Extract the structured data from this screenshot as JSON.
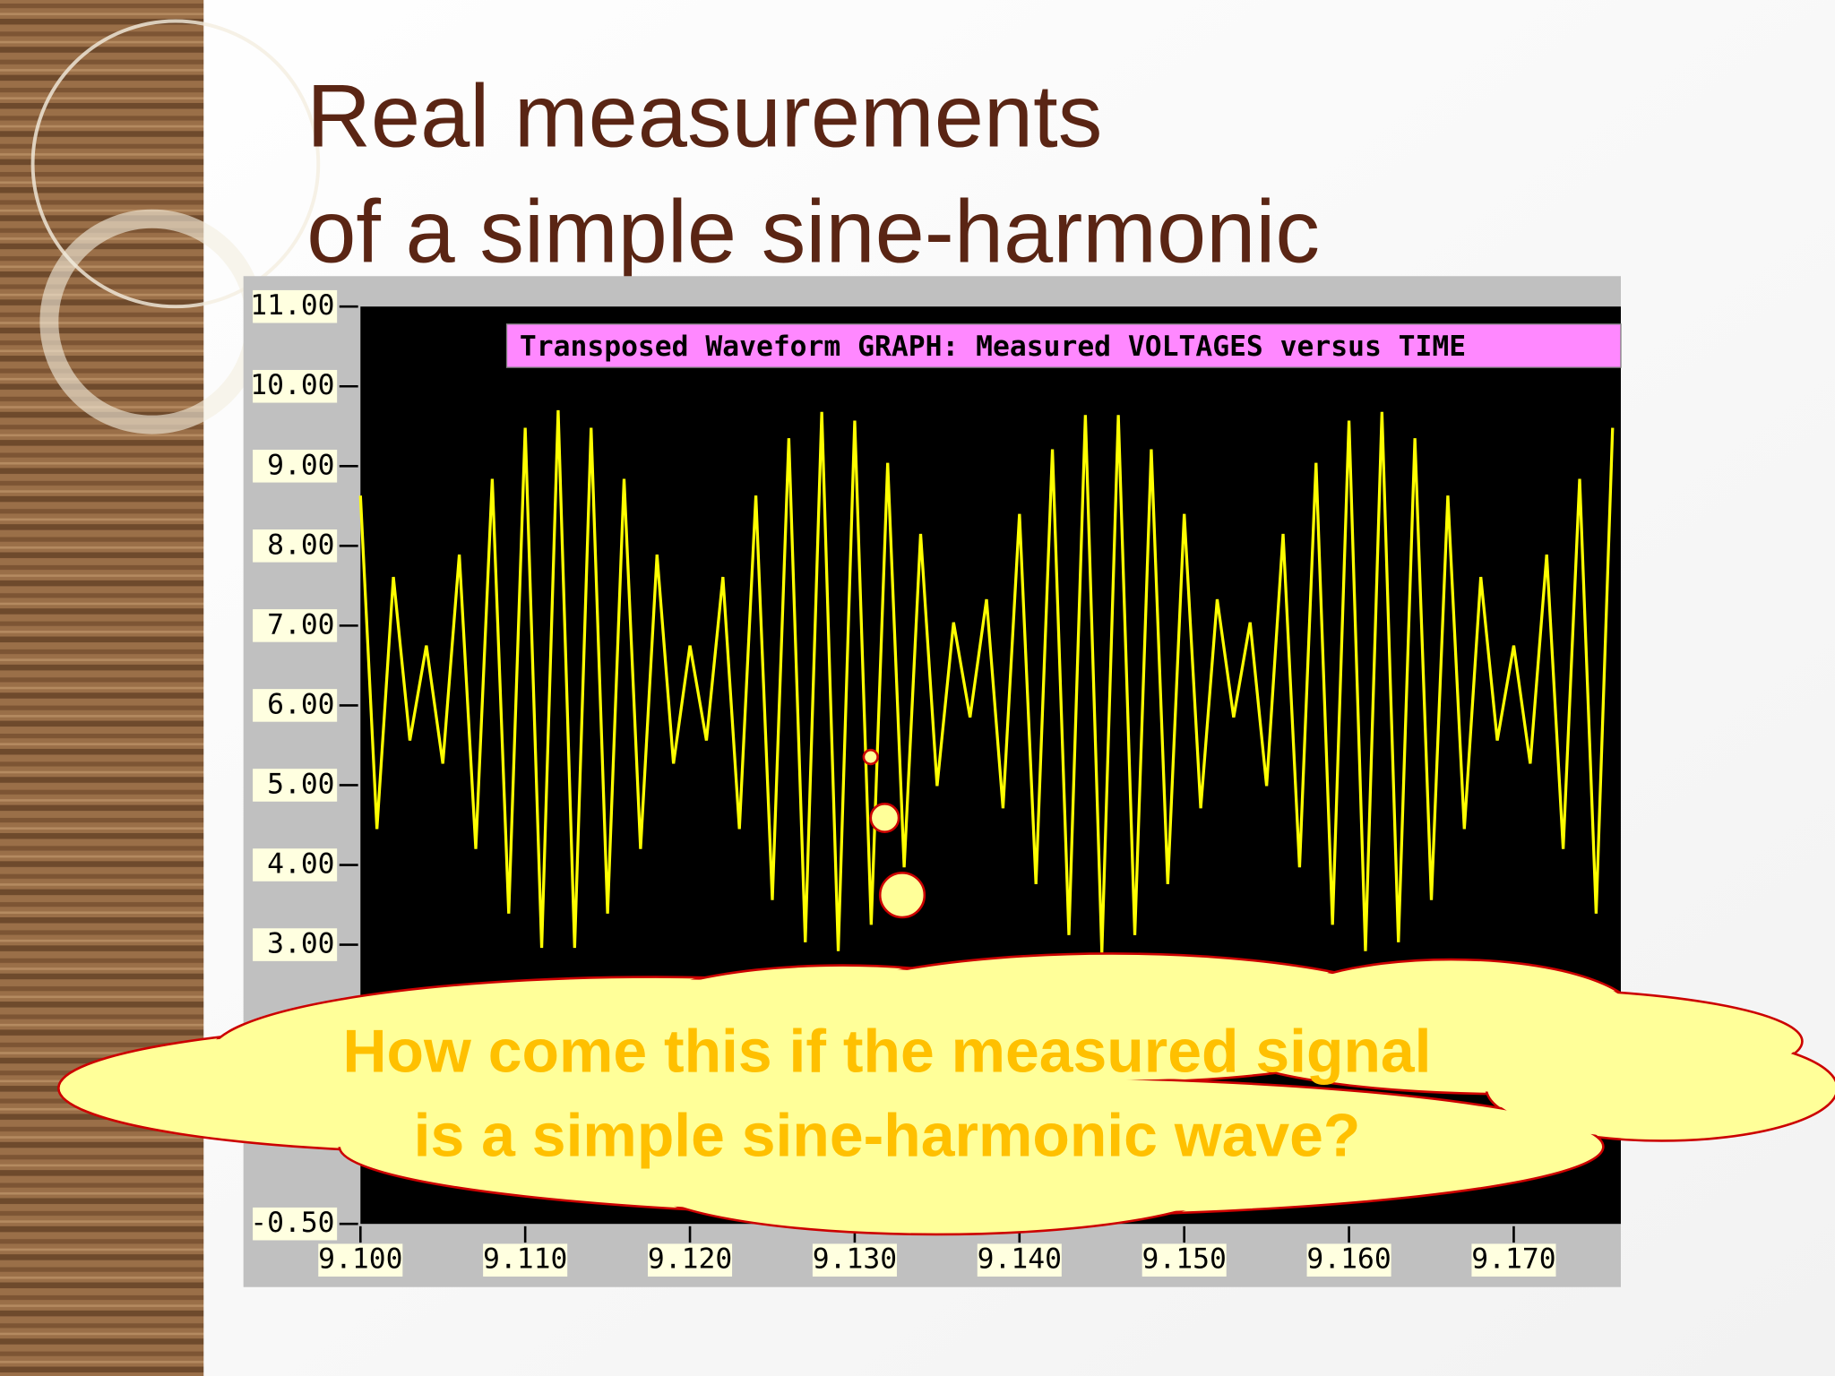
{
  "slide_title": [
    "Real measurements",
    "of a simple sine-harmonic"
  ],
  "callout": [
    "How come this if the measured signal",
    "is a simple sine-harmonic wave?"
  ],
  "chart_data": {
    "type": "line",
    "title": "Transposed Waveform GRAPH: Measured VOLTAGES versus TIME",
    "color": "#ffff00",
    "x": [
      9.1,
      9.101,
      9.102,
      9.103,
      9.104,
      9.105,
      9.106,
      9.107,
      9.108,
      9.109,
      9.11,
      9.111,
      9.112,
      9.113,
      9.114,
      9.115,
      9.116,
      9.117,
      9.118,
      9.119,
      9.12,
      9.121,
      9.122,
      9.123,
      9.124,
      9.125,
      9.126,
      9.127,
      9.128,
      9.129,
      9.13,
      9.131,
      9.132,
      9.133,
      9.134,
      9.135,
      9.136,
      9.137,
      9.138,
      9.139,
      9.14,
      9.141,
      9.142,
      9.143,
      9.144,
      9.145,
      9.146,
      9.147,
      9.148,
      9.149,
      9.15,
      9.151,
      9.152,
      9.153,
      9.154,
      9.155,
      9.156,
      9.157,
      9.158,
      9.159,
      9.16,
      9.161,
      9.162,
      9.163,
      9.164,
      9.165,
      9.166,
      9.167,
      9.168,
      9.169,
      9.17,
      9.171,
      9.172,
      9.173,
      9.174,
      9.175,
      9.176
    ],
    "values": [
      8.63,
      4.45,
      7.61,
      5.56,
      6.75,
      5.27,
      7.89,
      4.2,
      8.84,
      3.39,
      9.48,
      2.96,
      9.7,
      2.96,
      9.48,
      3.39,
      8.84,
      4.2,
      7.89,
      5.27,
      6.75,
      5.56,
      7.61,
      4.45,
      8.63,
      3.56,
      9.35,
      3.03,
      9.68,
      2.92,
      9.57,
      3.25,
      9.04,
      3.97,
      8.15,
      4.99,
      7.04,
      5.85,
      7.33,
      4.71,
      8.4,
      3.76,
      9.21,
      3.12,
      9.64,
      2.9,
      9.64,
      3.12,
      9.21,
      3.76,
      8.4,
      4.71,
      7.33,
      5.85,
      7.04,
      4.99,
      8.15,
      3.97,
      9.04,
      3.25,
      9.57,
      2.92,
      9.68,
      3.03,
      9.35,
      3.56,
      8.63,
      4.45,
      7.61,
      5.56,
      6.75,
      5.27,
      7.89,
      4.2,
      8.84,
      3.39,
      9.48
    ],
    "xlim": [
      9.1,
      9.1765
    ],
    "xticks": [
      {
        "value": 9.1,
        "label": "9.100"
      },
      {
        "value": 9.11,
        "label": "9.110"
      },
      {
        "value": 9.12,
        "label": "9.120"
      },
      {
        "value": 9.13,
        "label": "9.130"
      },
      {
        "value": 9.14,
        "label": "9.140"
      },
      {
        "value": 9.15,
        "label": "9.150"
      },
      {
        "value": 9.16,
        "label": "9.160"
      },
      {
        "value": 9.17,
        "label": "9.170"
      }
    ],
    "ylim": [
      -0.5,
      11
    ],
    "yticks": [
      {
        "value": 11,
        "label": "11.00"
      },
      {
        "value": 10,
        "label": "10.00"
      },
      {
        "value": 9,
        "label": "9.00"
      },
      {
        "value": 8,
        "label": "8.00"
      },
      {
        "value": 7,
        "label": "7.00"
      },
      {
        "value": 6,
        "label": "6.00"
      },
      {
        "value": 5,
        "label": "5.00"
      },
      {
        "value": 4,
        "label": "4.00"
      },
      {
        "value": 3,
        "label": "3.00"
      },
      {
        "value": -0.5,
        "label": "-0.50"
      }
    ]
  }
}
